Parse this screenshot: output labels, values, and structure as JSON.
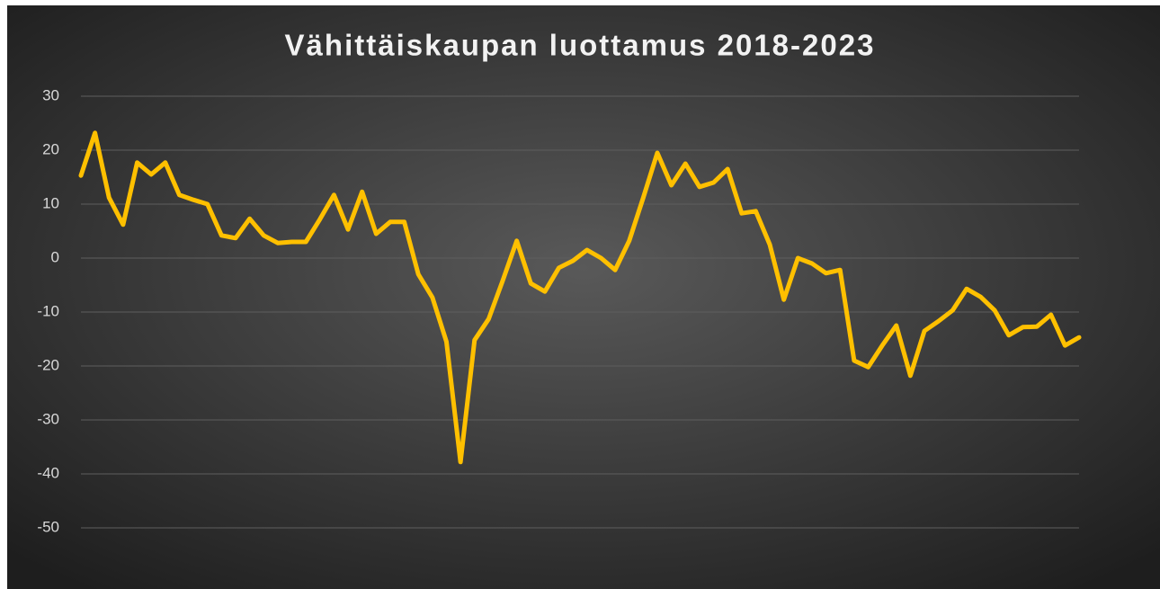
{
  "chart_data": {
    "type": "line",
    "title": "Vähittäiskaupan luottamus 2018-2023",
    "categories": [
      null,
      null,
      null,
      null,
      null,
      null,
      null,
      null,
      null,
      null,
      null,
      null,
      null,
      null,
      null,
      null,
      null,
      null,
      null,
      null,
      null,
      null,
      null,
      null,
      null,
      null,
      null,
      null,
      null,
      null,
      null,
      null,
      null,
      null,
      null,
      null,
      null,
      null,
      null,
      null,
      null,
      null,
      null,
      null,
      null,
      null,
      null,
      null,
      null,
      null,
      null,
      null,
      null,
      null,
      null,
      null,
      null,
      null,
      null,
      null,
      null,
      null,
      null,
      null,
      null,
      null,
      null,
      null,
      null,
      null,
      null,
      null
    ],
    "values": [
      15.3,
      23.2,
      11.2,
      6.2,
      17.7,
      15.5,
      17.7,
      11.7,
      10.8,
      10,
      4.2,
      3.7,
      7.3,
      4.2,
      2.8,
      3,
      3,
      7.2,
      11.7,
      5.3,
      12.3,
      4.5,
      6.7,
      6.7,
      -3,
      -7.3,
      -15.5,
      -37.8,
      -15.2,
      -11.3,
      -4.2,
      3.2,
      -4.7,
      -6.2,
      -1.8,
      -0.5,
      1.5,
      0,
      -2.2,
      3.2,
      11.2,
      19.5,
      13.5,
      17.5,
      13.2,
      14,
      16.5,
      8.3,
      8.7,
      2.5,
      -7.7,
      0,
      -1,
      -2.8,
      -2.2,
      -19,
      -20.2,
      -16.2,
      -12.5,
      -21.8,
      -13.5,
      -11.7,
      -9.7,
      -5.7,
      -7.2,
      -9.7,
      -14.3,
      -12.8,
      -12.7,
      -10.5,
      -16.2,
      -14.7
    ],
    "color": "#ffc000",
    "ylim": [
      -60,
      30
    ],
    "yticks": [
      -50,
      -40,
      -30,
      -20,
      -10,
      0,
      10,
      20,
      30
    ],
    "grid": true
  }
}
